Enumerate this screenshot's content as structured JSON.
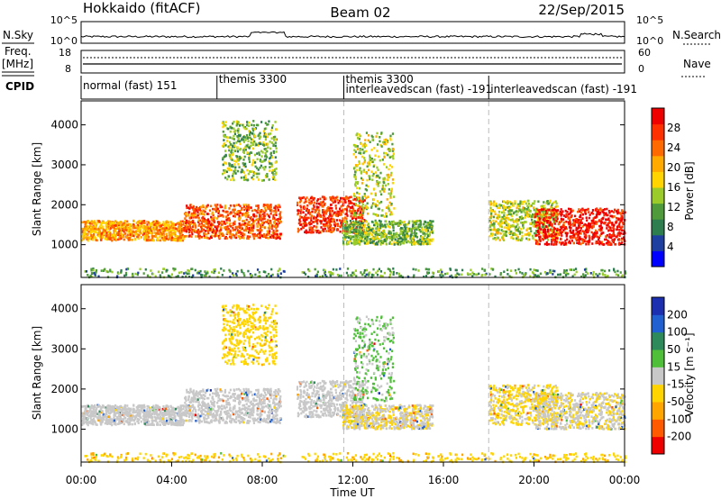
{
  "header": {
    "station": "Hokkaido (fitACF)",
    "beam": "Beam 02",
    "date": "22/Sep/2015"
  },
  "panels": {
    "nsky": {
      "label": "N.Sky",
      "ticks": [
        "10^5",
        "10^0"
      ],
      "right_label": "N.Search",
      "right_ticks": [
        "10^5",
        "10^0"
      ]
    },
    "freq": {
      "label": "Freq.",
      "unit": "[MHz]",
      "ticks": [
        "18",
        "8"
      ],
      "right_label": "Nave",
      "right_ticks": [
        "60",
        "0"
      ]
    },
    "cpid": {
      "label": "CPID",
      "modes": [
        {
          "name": "normal (fast) 151",
          "start": 0.0
        },
        {
          "name": "themis 3300",
          "start": 6.0
        },
        {
          "name": "themis 3300",
          "start": 11.6
        },
        {
          "name": "interleavedscan (fast) -191",
          "start": 11.6
        },
        {
          "name": "interleavedscan (fast) -191",
          "start": 18.0
        }
      ]
    }
  },
  "axes": {
    "time_ticks": [
      "00:00",
      "04:00",
      "08:00",
      "12:00",
      "16:00",
      "20:00",
      "00:00"
    ],
    "xlabel": "Time UT",
    "ylabel": "Slant Range [km]",
    "range_ticks": [
      "1000",
      "2000",
      "3000",
      "4000"
    ]
  },
  "colorbars": {
    "power": {
      "label": "Power [dB]",
      "ticks": [
        "4",
        "8",
        "12",
        "16",
        "20",
        "24",
        "28"
      ],
      "colors": [
        "#0000ff",
        "#1f3fa0",
        "#2e7d4f",
        "#4f9b3b",
        "#9acb2a",
        "#ffd400",
        "#ffaa00",
        "#ff6a00",
        "#ff3000",
        "#ee0000"
      ]
    },
    "velocity": {
      "label": "Velocity [m s⁻¹]",
      "ticks": [
        "200",
        "100",
        "50",
        "15",
        "-15",
        "-50",
        "-100",
        "-200"
      ],
      "colors": [
        "#1c2fb0",
        "#2060d0",
        "#2e8a5a",
        "#4fbf3a",
        "#c8c8c8",
        "#ffd400",
        "#ffa500",
        "#ff5a00",
        "#ee0000"
      ]
    }
  },
  "chart_data": {
    "type": "heatmap",
    "title": "Hokkaido (fitACF)  Beam 02  22/Sep/2015",
    "xlabel": "Time UT",
    "ylabel": "Slant Range [km]",
    "xlim": [
      0,
      24
    ],
    "ylim": [
      180,
      4600
    ],
    "x_units": "hours UT",
    "panels": [
      "Power [dB]",
      "Velocity [m s-1]"
    ],
    "power_range": [
      0,
      30
    ],
    "velocity_range": [
      -200,
      200
    ],
    "data_gaps_hours": [
      [
        9.0,
        9.3
      ],
      [
        9.3,
        9.5
      ]
    ],
    "scatter_bands": [
      {
        "t_start": 0.0,
        "t_end": 4.5,
        "range_km": [
          1100,
          1600
        ],
        "power_db": 20,
        "velocity_ms": 0
      },
      {
        "t_start": 4.5,
        "t_end": 8.8,
        "range_km": [
          1150,
          2000
        ],
        "power_db": 24,
        "velocity_ms": 0
      },
      {
        "t_start": 6.2,
        "t_end": 8.6,
        "range_km": [
          2600,
          4100
        ],
        "power_db": 12,
        "velocity_ms": -30
      },
      {
        "t_start": 9.5,
        "t_end": 12.5,
        "range_km": [
          1300,
          2200
        ],
        "power_db": 26,
        "velocity_ms": 0
      },
      {
        "t_start": 12.0,
        "t_end": 13.8,
        "range_km": [
          1700,
          3800
        ],
        "power_db": 14,
        "velocity_ms": 20
      },
      {
        "t_start": 11.5,
        "t_end": 15.5,
        "range_km": [
          1000,
          1600
        ],
        "power_db": 12,
        "velocity_ms": -10
      },
      {
        "t_start": 18.0,
        "t_end": 21.0,
        "range_km": [
          1100,
          2100
        ],
        "power_db": 14,
        "velocity_ms": -20
      },
      {
        "t_start": 20.0,
        "t_end": 24.0,
        "range_km": [
          1000,
          1900
        ],
        "power_db": 28,
        "velocity_ms": -10
      },
      {
        "t_start": 0.0,
        "t_end": 24.0,
        "range_km": [
          180,
          400
        ],
        "power_db": 10,
        "velocity_ms": -40
      }
    ],
    "n_sky_level": "1e1 to 1e3",
    "nave_level": "dotted, ~ 50"
  }
}
